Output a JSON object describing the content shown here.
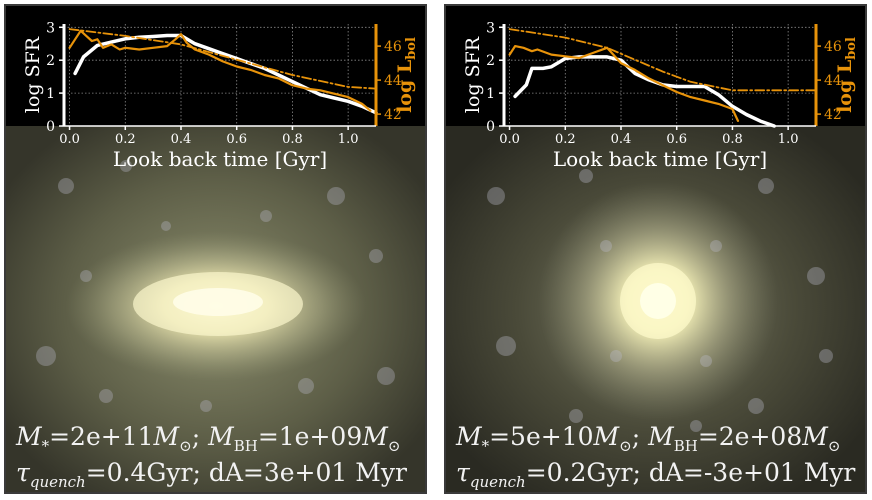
{
  "colors": {
    "sfr": "#ffffff",
    "lbol": "#e8930a",
    "plot_bg": "#000000",
    "grid": "#888888"
  },
  "panels": [
    {
      "caption_line1": {
        "m_star_label": "M",
        "m_star_sub": "*",
        "m_star_value": "=2e+11",
        "msun": "M",
        "msun_sub": "⊙",
        "sep": "; ",
        "mbh_label": "M",
        "mbh_sub": "BH",
        "mbh_value": "=1e+09",
        "msun2": "M",
        "msun2_sub": "⊙"
      },
      "caption_line2": {
        "tau_label": "τ",
        "tau_sub": "quench",
        "tau_value": "=0.4Gyr; dA=3e+01 Myr"
      }
    },
    {
      "caption_line1": {
        "m_star_label": "M",
        "m_star_sub": "*",
        "m_star_value": "=5e+10",
        "msun": "M",
        "msun_sub": "⊙",
        "sep": "; ",
        "mbh_label": "M",
        "mbh_sub": "BH",
        "mbh_value": "=2e+08",
        "msun2": "M",
        "msun2_sub": "⊙"
      },
      "caption_line2": {
        "tau_label": "τ",
        "tau_sub": "quench",
        "tau_value": "=0.2Gyr; dA=-3e+01 Myr"
      }
    }
  ],
  "chart_data": [
    {
      "type": "line",
      "xlabel": "Look back time [Gyr]",
      "ylabel": "log SFR",
      "y2label": "log L",
      "y2label_sub": "bol",
      "xlim": [
        -0.02,
        1.1
      ],
      "ylim": [
        0,
        3.1
      ],
      "y2lim": [
        41.3,
        47.3
      ],
      "xticks": [
        "0.0",
        "0.2",
        "0.4",
        "0.6",
        "0.8",
        "1.0"
      ],
      "xtick_values": [
        0.0,
        0.2,
        0.4,
        0.6,
        0.8,
        1.0
      ],
      "yticks": [
        "0",
        "1",
        "2",
        "3"
      ],
      "ytick_values": [
        0,
        1,
        2,
        3
      ],
      "y2ticks": [
        "42",
        "44",
        "46"
      ],
      "y2tick_values": [
        42,
        44,
        46
      ],
      "grid": true,
      "series": [
        {
          "axis": "left",
          "style": "solid",
          "color_key": "sfr",
          "x": [
            0.02,
            0.05,
            0.1,
            0.15,
            0.2,
            0.25,
            0.3,
            0.35,
            0.4,
            0.45,
            0.5,
            0.55,
            0.6,
            0.65,
            0.7,
            0.75,
            0.8,
            0.85,
            0.9,
            0.95,
            1.0,
            1.05,
            1.1
          ],
          "y": [
            1.6,
            2.1,
            2.45,
            2.55,
            2.65,
            2.7,
            2.72,
            2.75,
            2.75,
            2.5,
            2.35,
            2.2,
            2.05,
            1.9,
            1.75,
            1.55,
            1.35,
            1.15,
            0.95,
            0.85,
            0.75,
            0.6,
            0.4
          ]
        },
        {
          "axis": "right",
          "style": "solid",
          "color_key": "lbol",
          "x": [
            0.0,
            0.02,
            0.04,
            0.06,
            0.08,
            0.1,
            0.12,
            0.15,
            0.18,
            0.2,
            0.25,
            0.3,
            0.35,
            0.38,
            0.4,
            0.42,
            0.45,
            0.5,
            0.55,
            0.6,
            0.65,
            0.7,
            0.75,
            0.8,
            0.85,
            0.9,
            0.95,
            1.0,
            1.05,
            1.08
          ],
          "y": [
            45.9,
            46.4,
            46.9,
            46.6,
            46.3,
            46.4,
            45.9,
            46.1,
            45.8,
            45.9,
            45.8,
            45.9,
            46.0,
            46.4,
            46.7,
            46.2,
            45.8,
            45.5,
            45.1,
            44.8,
            44.6,
            44.3,
            44.1,
            43.7,
            43.5,
            43.4,
            43.2,
            43.0,
            42.6,
            42.2
          ]
        },
        {
          "axis": "right",
          "style": "dashdot",
          "color_key": "lbol",
          "x": [
            0.0,
            0.2,
            0.4,
            0.6,
            0.8,
            1.0,
            1.1
          ],
          "y": [
            47.0,
            46.6,
            46.1,
            45.2,
            44.3,
            43.6,
            43.5
          ]
        }
      ]
    },
    {
      "type": "line",
      "xlabel": "Look back time [Gyr]",
      "ylabel": "log SFR",
      "y2label": "log L",
      "y2label_sub": "bol",
      "xlim": [
        -0.02,
        1.1
      ],
      "ylim": [
        0,
        3.1
      ],
      "y2lim": [
        41.3,
        47.3
      ],
      "xticks": [
        "0.0",
        "0.2",
        "0.4",
        "0.6",
        "0.8",
        "1.0"
      ],
      "xtick_values": [
        0.0,
        0.2,
        0.4,
        0.6,
        0.8,
        1.0
      ],
      "yticks": [
        "0",
        "1",
        "2",
        "3"
      ],
      "ytick_values": [
        0,
        1,
        2,
        3
      ],
      "y2ticks": [
        "42",
        "44",
        "46"
      ],
      "y2tick_values": [
        42,
        44,
        46
      ],
      "grid": true,
      "series": [
        {
          "axis": "left",
          "style": "solid",
          "color_key": "sfr",
          "x": [
            0.02,
            0.06,
            0.08,
            0.12,
            0.15,
            0.2,
            0.25,
            0.3,
            0.35,
            0.4,
            0.45,
            0.5,
            0.55,
            0.6,
            0.65,
            0.7,
            0.75,
            0.8,
            0.85,
            0.9,
            0.95
          ],
          "y": [
            0.9,
            1.25,
            1.75,
            1.75,
            1.8,
            2.05,
            2.1,
            2.1,
            2.1,
            2.0,
            1.6,
            1.4,
            1.25,
            1.2,
            1.2,
            1.2,
            0.95,
            0.6,
            0.35,
            0.15,
            0.0
          ]
        },
        {
          "axis": "right",
          "style": "solid",
          "color_key": "lbol",
          "x": [
            0.0,
            0.02,
            0.05,
            0.08,
            0.1,
            0.15,
            0.2,
            0.25,
            0.3,
            0.35,
            0.4,
            0.45,
            0.5,
            0.55,
            0.6,
            0.65,
            0.7,
            0.75,
            0.8,
            0.82
          ],
          "y": [
            45.5,
            46.0,
            45.9,
            45.7,
            45.8,
            45.5,
            45.4,
            45.3,
            45.6,
            45.9,
            45.0,
            44.6,
            44.1,
            43.7,
            43.3,
            43.0,
            42.8,
            42.6,
            42.3,
            41.6
          ]
        },
        {
          "axis": "right",
          "style": "dashdot",
          "color_key": "lbol",
          "x": [
            0.0,
            0.2,
            0.35,
            0.45,
            0.55,
            0.65,
            0.8,
            0.95,
            1.1
          ],
          "y": [
            47.0,
            46.5,
            45.9,
            45.2,
            44.5,
            43.9,
            43.4,
            43.4,
            43.4
          ]
        }
      ]
    }
  ]
}
